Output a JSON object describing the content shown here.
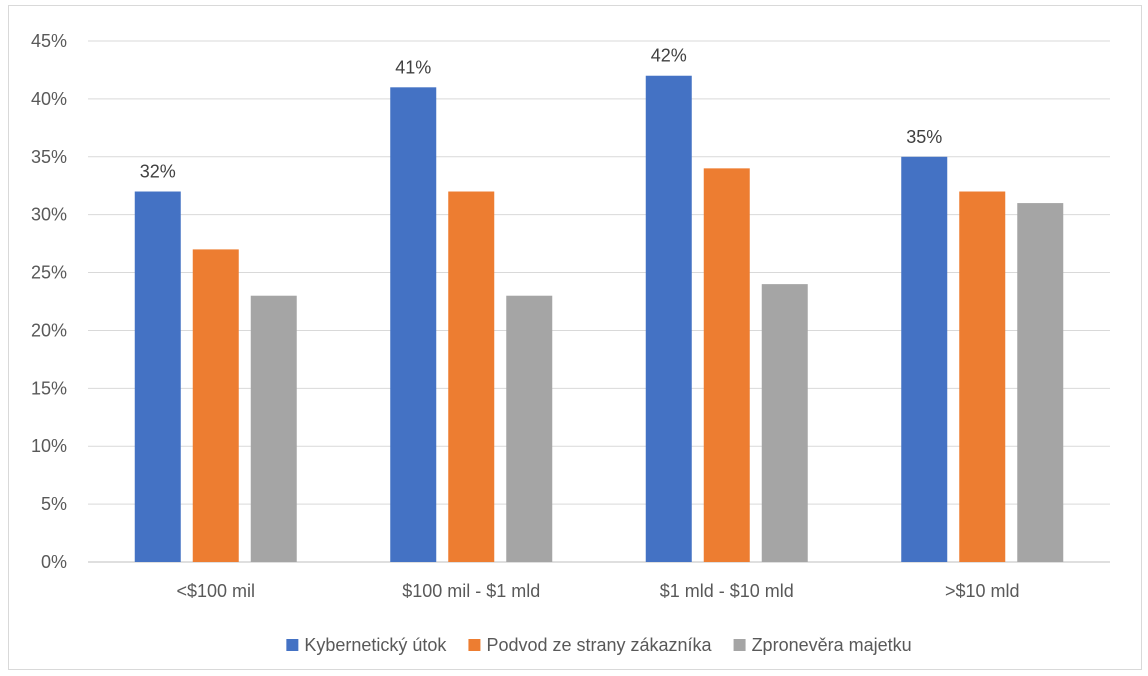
{
  "chart_data": {
    "type": "bar",
    "categories": [
      "<$100 mil",
      "$100 mil - $1 mld",
      "$1 mld - $10 mld",
      ">$10 mld"
    ],
    "series": [
      {
        "name": "Kybernetický útok",
        "color": "#4472C4",
        "values": [
          32,
          41,
          42,
          35
        ]
      },
      {
        "name": "Podvod ze strany zákazníka",
        "color": "#ED7D31",
        "values": [
          27,
          32,
          34,
          32
        ]
      },
      {
        "name": "Zpronevěra majetku",
        "color": "#A5A5A5",
        "values": [
          23,
          23,
          24,
          31
        ]
      }
    ],
    "data_labels": {
      "series_index": 0,
      "labels": [
        "32%",
        "41%",
        "42%",
        "35%"
      ]
    },
    "ylim": [
      0,
      45
    ],
    "yticks": [
      0,
      5,
      10,
      15,
      20,
      25,
      30,
      35,
      40,
      45
    ],
    "ytick_labels": [
      "0%",
      "5%",
      "10%",
      "15%",
      "20%",
      "25%",
      "30%",
      "35%",
      "40%",
      "45%"
    ],
    "title": "",
    "xlabel": "",
    "ylabel": "",
    "grid": "horizontal",
    "legend_position": "bottom"
  }
}
